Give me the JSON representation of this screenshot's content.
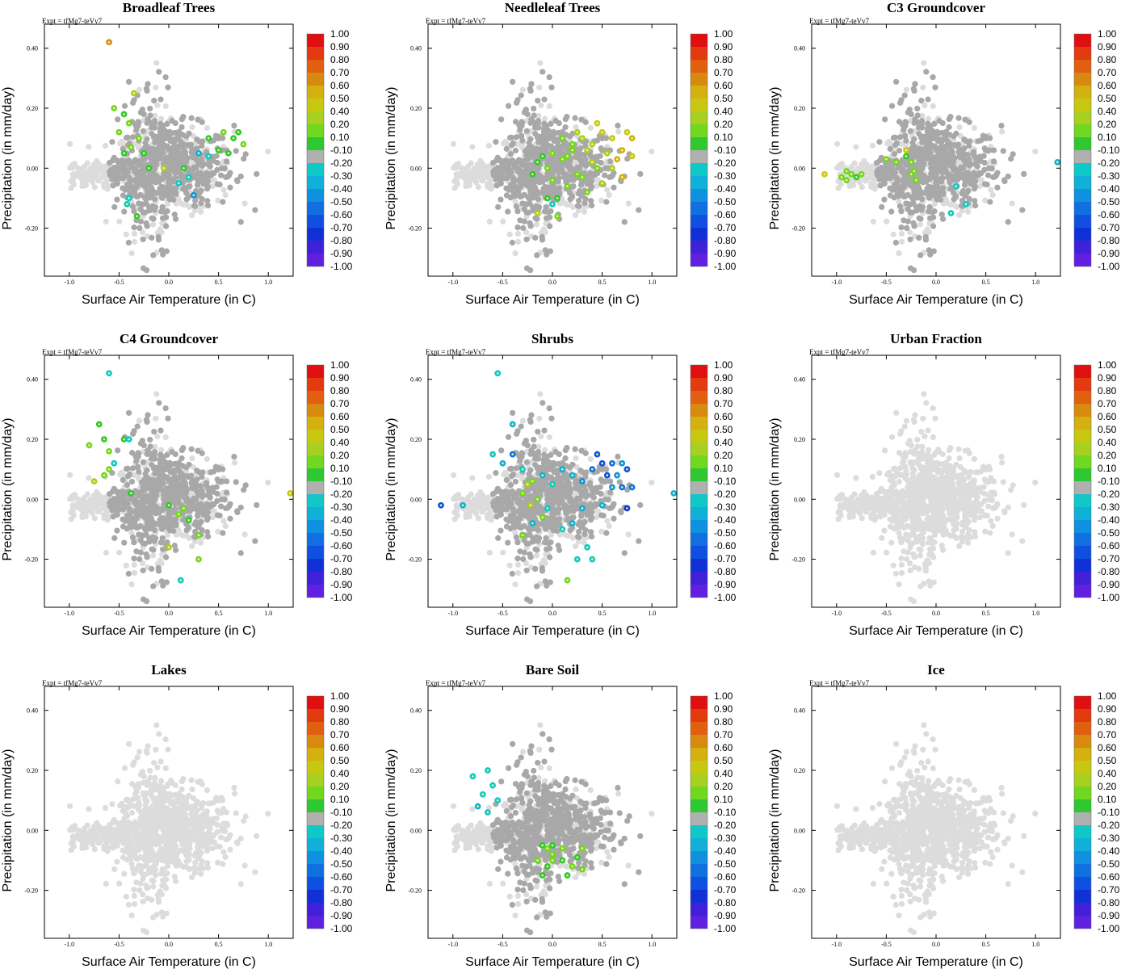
{
  "figure": {
    "expt_label": "Expt = tfMg7-teVv7",
    "colorbar_labels": [
      "1.00",
      "0.90",
      "0.80",
      "0.70",
      "0.60",
      "0.50",
      "0.40",
      "0.20",
      "0.10",
      "-0.10",
      "-0.20",
      "-0.30",
      "-0.40",
      "-0.50",
      "-0.60",
      "-0.70",
      "-0.80",
      "-0.90",
      "-1.00"
    ],
    "colorbar_colors": [
      "#e01010",
      "#e43a10",
      "#e06010",
      "#d88a10",
      "#d4b010",
      "#c8c810",
      "#a8d020",
      "#70d820",
      "#30c830",
      "#b0b0b0",
      "#10c8c8",
      "#10b0d8",
      "#1090e0",
      "#1070e0",
      "#1050e0",
      "#1030d8",
      "#4020d8",
      "#6020e0",
      "#8030e8"
    ],
    "background_grey": "#dcdcdc",
    "neutral_grey": "#a8a8a8"
  },
  "chart_data": [
    {
      "type": "scatter",
      "title": "Broadleaf Trees",
      "xlabel": "Surface Air Temperature (in C)",
      "ylabel": "Precipitation (in mm/day)",
      "xlim": [
        -1.25,
        1.25
      ],
      "ylim": [
        -0.36,
        0.48
      ],
      "xticks": [
        "-1.0",
        "-0.5",
        "0.0",
        "0.5",
        "1.0"
      ],
      "yticks": [
        "0.40",
        "0.20",
        "0.00",
        "-0.20"
      ],
      "highlighted": [
        [
          -0.6,
          0.42,
          0.65
        ],
        [
          -0.45,
          0.18,
          0.1
        ],
        [
          -0.5,
          0.12,
          0.3
        ],
        [
          -0.4,
          0.15,
          0.2
        ],
        [
          -0.35,
          0.25,
          0.4
        ],
        [
          -0.55,
          0.2,
          0.2
        ],
        [
          -0.3,
          0.1,
          0.2
        ],
        [
          -0.38,
          0.07,
          0.25
        ],
        [
          -0.25,
          0.05,
          0.15
        ],
        [
          -0.45,
          0.05,
          0.1
        ],
        [
          -0.32,
          -0.16,
          0.15
        ],
        [
          -0.42,
          -0.12,
          -0.25
        ],
        [
          0.4,
          0.1,
          0.15
        ],
        [
          0.55,
          0.12,
          0.2
        ],
        [
          0.65,
          0.1,
          0.15
        ],
        [
          0.7,
          0.12,
          0.15
        ],
        [
          0.75,
          0.08,
          0.2
        ],
        [
          0.6,
          0.05,
          0.1
        ],
        [
          0.5,
          0.06,
          0.15
        ],
        [
          0.4,
          0.04,
          -0.2
        ],
        [
          0.3,
          0.05,
          -0.3
        ],
        [
          0.2,
          -0.03,
          -0.25
        ],
        [
          0.25,
          -0.09,
          -0.4
        ],
        [
          -0.05,
          0.0,
          0.35
        ],
        [
          0.15,
          0.0,
          0.15
        ],
        [
          -0.2,
          0.0,
          0.15
        ],
        [
          0.1,
          -0.05,
          -0.25
        ],
        [
          -0.4,
          -0.1,
          -0.25
        ]
      ]
    },
    {
      "type": "scatter",
      "title": "Needleleaf Trees",
      "xlabel": "Surface Air Temperature (in C)",
      "ylabel": "Precipitation (in mm/day)",
      "xlim": [
        -1.25,
        1.25
      ],
      "ylim": [
        -0.36,
        0.48
      ],
      "xticks": [
        "-1.0",
        "-0.5",
        "0.0",
        "0.5",
        "1.0"
      ],
      "yticks": [
        "0.40",
        "0.20",
        "0.00",
        "-0.20"
      ],
      "highlighted": [
        [
          0.0,
          0.05,
          0.2
        ],
        [
          0.1,
          0.03,
          0.25
        ],
        [
          0.2,
          0.06,
          0.3
        ],
        [
          0.3,
          0.1,
          0.4
        ],
        [
          0.4,
          0.08,
          0.35
        ],
        [
          0.5,
          0.12,
          0.5
        ],
        [
          0.6,
          0.1,
          0.45
        ],
        [
          0.7,
          0.06,
          0.55
        ],
        [
          0.75,
          0.12,
          0.5
        ],
        [
          0.8,
          0.04,
          0.5
        ],
        [
          0.65,
          0.03,
          0.55
        ],
        [
          0.45,
          0.15,
          0.5
        ],
        [
          0.35,
          0.06,
          0.4
        ],
        [
          0.25,
          -0.02,
          0.3
        ],
        [
          0.15,
          -0.06,
          0.2
        ],
        [
          0.05,
          -0.1,
          0.15
        ],
        [
          -0.05,
          0.0,
          0.2
        ],
        [
          -0.15,
          0.02,
          0.15
        ],
        [
          0.0,
          -0.04,
          0.25
        ],
        [
          0.3,
          -0.03,
          0.3
        ],
        [
          0.5,
          -0.05,
          0.35
        ],
        [
          0.6,
          0.0,
          0.4
        ],
        [
          0.7,
          -0.03,
          0.55
        ],
        [
          0.4,
          0.02,
          0.35
        ],
        [
          0.2,
          0.08,
          0.3
        ],
        [
          0.1,
          0.1,
          0.25
        ],
        [
          -0.1,
          0.04,
          0.15
        ],
        [
          -0.2,
          -0.02,
          0.1
        ],
        [
          0.35,
          -0.08,
          0.3
        ],
        [
          0.15,
          0.04,
          0.25
        ],
        [
          -0.15,
          -0.15,
          0.4
        ],
        [
          0.05,
          -0.16,
          0.2
        ],
        [
          -0.05,
          -0.1,
          0.15
        ],
        [
          0.45,
          0.0,
          0.3
        ],
        [
          0.55,
          0.05,
          0.4
        ],
        [
          0.25,
          0.12,
          0.35
        ],
        [
          0.0,
          -0.12,
          -0.2
        ],
        [
          0.8,
          0.1,
          0.55
        ]
      ]
    },
    {
      "type": "scatter",
      "title": "C3 Groundcover",
      "xlabel": "Surface Air Temperature (in C)",
      "ylabel": "Precipitation (in mm/day)",
      "xlim": [
        -1.25,
        1.25
      ],
      "ylim": [
        -0.36,
        0.48
      ],
      "xticks": [
        "-1.0",
        "-0.5",
        "0.0",
        "0.5",
        "1.0"
      ],
      "yticks": [
        "0.40",
        "0.20",
        "0.00",
        "-0.20"
      ],
      "highlighted": [
        [
          -1.12,
          -0.02,
          0.5
        ],
        [
          -0.95,
          -0.03,
          0.3
        ],
        [
          -0.9,
          -0.01,
          0.2
        ],
        [
          -0.85,
          -0.02,
          0.3
        ],
        [
          -0.8,
          -0.03,
          0.15
        ],
        [
          -0.75,
          -0.02,
          0.2
        ],
        [
          -0.9,
          -0.04,
          0.25
        ],
        [
          -0.5,
          0.03,
          0.3
        ],
        [
          -0.4,
          0.02,
          0.2
        ],
        [
          -0.3,
          0.04,
          0.15
        ],
        [
          -0.25,
          0.02,
          0.2
        ],
        [
          -0.22,
          -0.01,
          0.25
        ],
        [
          -0.2,
          -0.04,
          0.2
        ],
        [
          -0.3,
          0.06,
          0.5
        ],
        [
          -0.25,
          -0.02,
          0.3
        ],
        [
          0.2,
          -0.06,
          -0.25
        ],
        [
          0.3,
          -0.12,
          -0.25
        ],
        [
          0.15,
          -0.15,
          -0.2
        ],
        [
          1.22,
          0.02,
          -0.3
        ]
      ]
    },
    {
      "type": "scatter",
      "title": "C4 Groundcover",
      "xlabel": "Surface Air Temperature (in C)",
      "ylabel": "Precipitation (in mm/day)",
      "xlim": [
        -1.25,
        1.25
      ],
      "ylim": [
        -0.36,
        0.48
      ],
      "xticks": [
        "-1.0",
        "-0.5",
        "0.0",
        "0.5",
        "1.0"
      ],
      "yticks": [
        "0.40",
        "0.20",
        "0.00",
        "-0.20"
      ],
      "highlighted": [
        [
          -0.6,
          0.42,
          -0.2
        ],
        [
          -0.8,
          0.18,
          0.2
        ],
        [
          -0.7,
          0.25,
          0.15
        ],
        [
          -0.65,
          0.2,
          0.15
        ],
        [
          -0.6,
          0.16,
          0.2
        ],
        [
          -0.55,
          0.12,
          -0.2
        ],
        [
          -0.6,
          0.1,
          0.2
        ],
        [
          -0.65,
          0.08,
          0.2
        ],
        [
          -0.75,
          0.06,
          0.35
        ],
        [
          -0.45,
          0.2,
          0.15
        ],
        [
          -0.38,
          0.02,
          0.15
        ],
        [
          0.0,
          -0.02,
          0.15
        ],
        [
          0.1,
          -0.05,
          0.2
        ],
        [
          0.15,
          -0.03,
          0.2
        ],
        [
          0.2,
          -0.07,
          0.15
        ],
        [
          0.3,
          -0.12,
          0.2
        ],
        [
          0.0,
          -0.16,
          0.4
        ],
        [
          0.3,
          -0.2,
          0.3
        ],
        [
          0.12,
          -0.27,
          -0.2
        ],
        [
          1.22,
          0.02,
          0.5
        ],
        [
          -0.4,
          0.2,
          -0.2
        ]
      ]
    },
    {
      "type": "scatter",
      "title": "Shrubs",
      "xlabel": "Surface Air Temperature (in C)",
      "ylabel": "Precipitation (in mm/day)",
      "xlim": [
        -1.25,
        1.25
      ],
      "ylim": [
        -0.36,
        0.48
      ],
      "xticks": [
        "-1.0",
        "-0.5",
        "0.0",
        "0.5",
        "1.0"
      ],
      "yticks": [
        "0.40",
        "0.20",
        "0.00",
        "-0.20"
      ],
      "highlighted": [
        [
          -0.55,
          0.42,
          -0.25
        ],
        [
          -0.4,
          0.25,
          -0.3
        ],
        [
          -0.6,
          0.15,
          -0.2
        ],
        [
          -0.4,
          0.15,
          -0.5
        ],
        [
          -0.5,
          0.12,
          -0.3
        ],
        [
          -0.3,
          0.1,
          -0.25
        ],
        [
          -0.2,
          0.06,
          0.3
        ],
        [
          -0.25,
          0.05,
          0.4
        ],
        [
          -0.3,
          0.02,
          0.2
        ],
        [
          -0.15,
          0.0,
          0.2
        ],
        [
          -0.22,
          -0.02,
          0.35
        ],
        [
          -0.1,
          0.08,
          -0.3
        ],
        [
          0.0,
          0.05,
          -0.25
        ],
        [
          0.1,
          0.1,
          -0.3
        ],
        [
          0.2,
          0.08,
          -0.35
        ],
        [
          0.3,
          0.06,
          -0.4
        ],
        [
          0.4,
          0.1,
          -0.5
        ],
        [
          0.45,
          0.15,
          -0.55
        ],
        [
          0.5,
          0.12,
          -0.6
        ],
        [
          0.55,
          0.08,
          -0.6
        ],
        [
          0.6,
          0.12,
          -0.5
        ],
        [
          0.65,
          0.08,
          -0.45
        ],
        [
          0.7,
          0.12,
          -0.45
        ],
        [
          0.75,
          0.1,
          -0.55
        ],
        [
          0.8,
          0.04,
          -0.5
        ],
        [
          0.7,
          0.04,
          -0.5
        ],
        [
          0.6,
          0.04,
          -0.4
        ],
        [
          0.75,
          -0.03,
          -0.7
        ],
        [
          0.5,
          -0.02,
          -0.3
        ],
        [
          0.3,
          -0.03,
          -0.3
        ],
        [
          0.2,
          -0.08,
          -0.3
        ],
        [
          0.1,
          -0.1,
          -0.25
        ],
        [
          0.35,
          -0.16,
          -0.25
        ],
        [
          0.4,
          -0.2,
          -0.25
        ],
        [
          0.25,
          -0.2,
          -0.25
        ],
        [
          -0.1,
          -0.06,
          0.2
        ],
        [
          -0.3,
          -0.12,
          0.2
        ],
        [
          0.15,
          -0.27,
          0.3
        ],
        [
          -1.12,
          -0.02,
          -0.55
        ],
        [
          -0.9,
          -0.02,
          -0.3
        ],
        [
          1.22,
          0.02,
          -0.35
        ],
        [
          -0.05,
          -0.03,
          -0.25
        ],
        [
          -0.2,
          -0.08,
          -0.3
        ]
      ]
    },
    {
      "type": "scatter",
      "title": "Urban Fraction",
      "xlabel": "Surface Air Temperature (in C)",
      "ylabel": "Precipitation (in mm/day)",
      "xlim": [
        -1.25,
        1.25
      ],
      "ylim": [
        -0.36,
        0.48
      ],
      "xticks": [
        "-1.0",
        "-0.5",
        "0.0",
        "0.5",
        "1.0"
      ],
      "yticks": [
        "0.40",
        "0.20",
        "0.00",
        "-0.20"
      ],
      "highlighted": []
    },
    {
      "type": "scatter",
      "title": "Lakes",
      "xlabel": "Surface Air Temperature (in C)",
      "ylabel": "Precipitation (in mm/day)",
      "xlim": [
        -1.25,
        1.25
      ],
      "ylim": [
        -0.36,
        0.48
      ],
      "xticks": [
        "-1.0",
        "-0.5",
        "0.0",
        "0.5",
        "1.0"
      ],
      "yticks": [
        "0.40",
        "0.20",
        "0.00",
        "-0.20"
      ],
      "highlighted": []
    },
    {
      "type": "scatter",
      "title": "Bare Soil",
      "xlabel": "Surface Air Temperature (in C)",
      "ylabel": "Precipitation (in mm/day)",
      "xlim": [
        -1.25,
        1.25
      ],
      "ylim": [
        -0.36,
        0.48
      ],
      "xticks": [
        "-1.0",
        "-0.5",
        "0.0",
        "0.5",
        "1.0"
      ],
      "yticks": [
        "0.40",
        "0.20",
        "0.00",
        "-0.20"
      ],
      "highlighted": [
        [
          -0.65,
          0.2,
          -0.25
        ],
        [
          -0.8,
          0.18,
          -0.2
        ],
        [
          -0.6,
          0.15,
          -0.25
        ],
        [
          -0.7,
          0.12,
          -0.25
        ],
        [
          -0.75,
          0.08,
          -0.3
        ],
        [
          -0.65,
          0.06,
          -0.25
        ],
        [
          -0.55,
          0.1,
          -0.2
        ],
        [
          -0.1,
          -0.05,
          0.15
        ],
        [
          -0.05,
          -0.06,
          0.2
        ],
        [
          0.0,
          -0.05,
          0.15
        ],
        [
          0.1,
          -0.06,
          0.2
        ],
        [
          -0.15,
          -0.1,
          0.2
        ],
        [
          -0.05,
          -0.12,
          0.15
        ],
        [
          0.0,
          -0.1,
          0.2
        ],
        [
          0.1,
          -0.1,
          0.15
        ],
        [
          0.2,
          -0.12,
          0.2
        ],
        [
          0.25,
          -0.09,
          0.15
        ],
        [
          0.3,
          -0.06,
          0.2
        ],
        [
          0.3,
          -0.13,
          0.2
        ],
        [
          -0.1,
          -0.15,
          0.15
        ],
        [
          0.15,
          -0.15,
          0.15
        ],
        [
          0.0,
          -0.08,
          0.2
        ]
      ]
    },
    {
      "type": "scatter",
      "title": "Ice",
      "xlabel": "Surface Air Temperature (in C)",
      "ylabel": "Precipitation (in mm/day)",
      "xlim": [
        -1.25,
        1.25
      ],
      "ylim": [
        -0.36,
        0.48
      ],
      "xticks": [
        "-1.0",
        "-0.5",
        "0.0",
        "0.5",
        "1.0"
      ],
      "yticks": [
        "0.40",
        "0.20",
        "0.00",
        "-0.20"
      ],
      "highlighted": []
    }
  ]
}
